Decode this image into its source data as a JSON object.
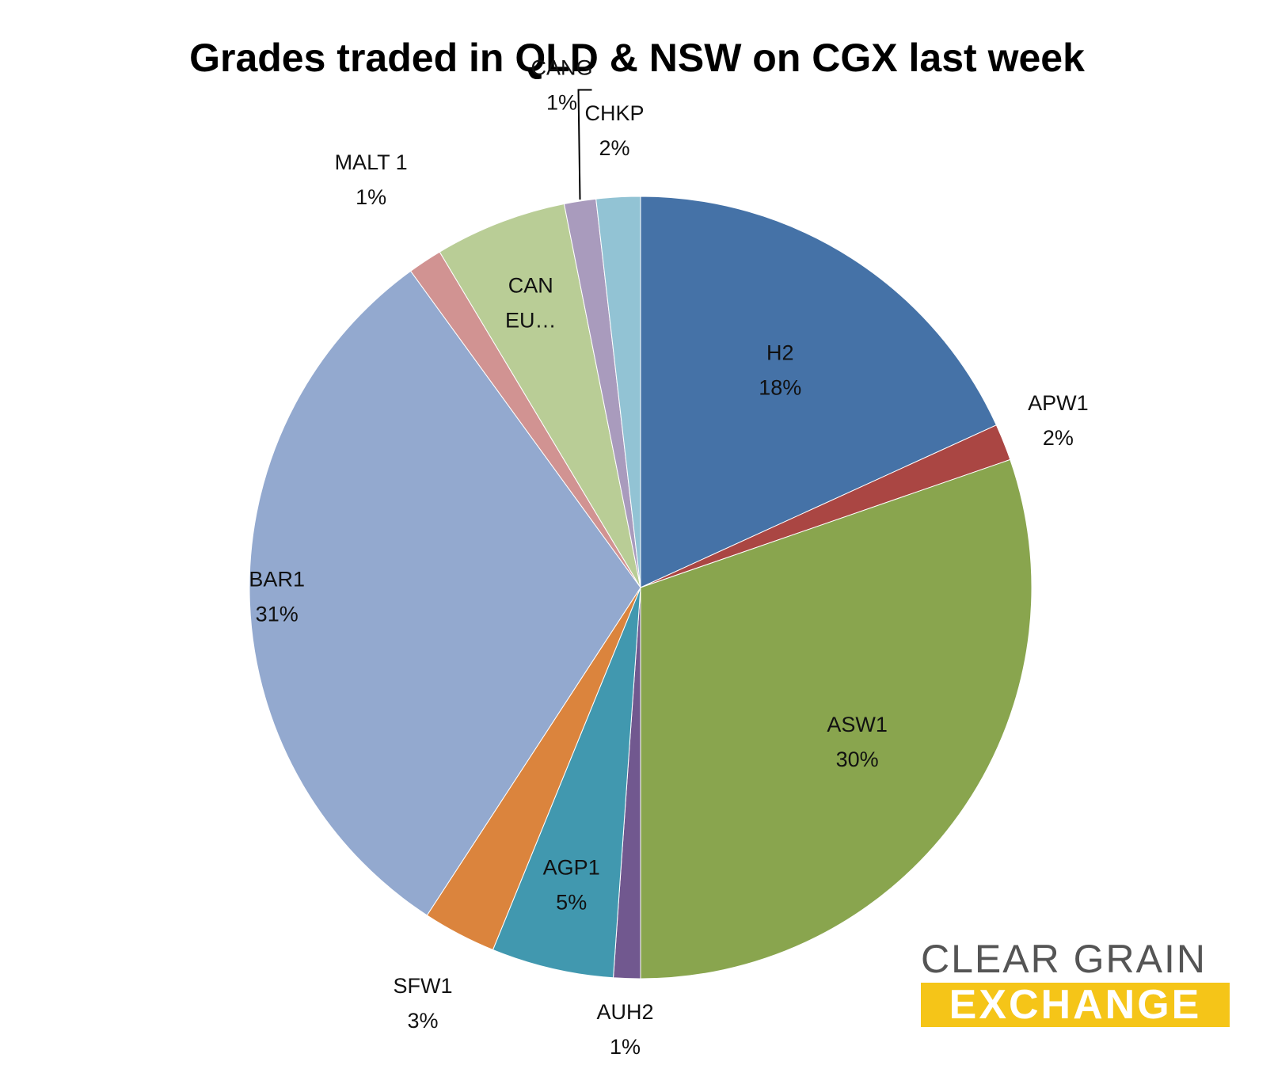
{
  "chart_data": {
    "type": "pie",
    "title": "Grades traded in QLD & NSW on CGX last week",
    "slices": [
      {
        "label": "H2",
        "label_lines": [
          "H2"
        ],
        "pct_text": "18%",
        "value": 18,
        "color": "#4572A7"
      },
      {
        "label": "APW1",
        "label_lines": [
          "APW1"
        ],
        "pct_text": "2%",
        "value": 1.5,
        "color": "#AA4643"
      },
      {
        "label": "ASW1",
        "label_lines": [
          "ASW1"
        ],
        "pct_text": "30%",
        "value": 30,
        "color": "#89A54E"
      },
      {
        "label": "AUH2",
        "label_lines": [
          "AUH2"
        ],
        "pct_text": "1%",
        "value": 1.1,
        "color": "#71588F"
      },
      {
        "label": "AGP1",
        "label_lines": [
          "AGP1"
        ],
        "pct_text": "5%",
        "value": 5,
        "color": "#4198AF"
      },
      {
        "label": "SFW1",
        "label_lines": [
          "SFW1"
        ],
        "pct_text": "3%",
        "value": 3,
        "color": "#DB843D"
      },
      {
        "label": "BAR1",
        "label_lines": [
          "BAR1"
        ],
        "pct_text": "31%",
        "value": 30.5,
        "color": "#93A9CF"
      },
      {
        "label": "MALT 1",
        "label_lines": [
          "MALT 1"
        ],
        "pct_text": "1%",
        "value": 1.4,
        "color": "#D19392"
      },
      {
        "label": "CAN EU…",
        "label_lines": [
          "CAN",
          "EU…"
        ],
        "pct_text": "",
        "value": 5.4,
        "color": "#B9CD96"
      },
      {
        "label": "CANG",
        "label_lines": [
          "CANG"
        ],
        "pct_text": "1%",
        "value": 1.3,
        "color": "#A99BBD"
      },
      {
        "label": "CHKP",
        "label_lines": [
          "CHKP"
        ],
        "pct_text": "2%",
        "value": 1.8,
        "color": "#92C3D4"
      }
    ]
  },
  "logo": {
    "line1": "CLEAR GRAIN",
    "line2": "EXCHANGE"
  }
}
